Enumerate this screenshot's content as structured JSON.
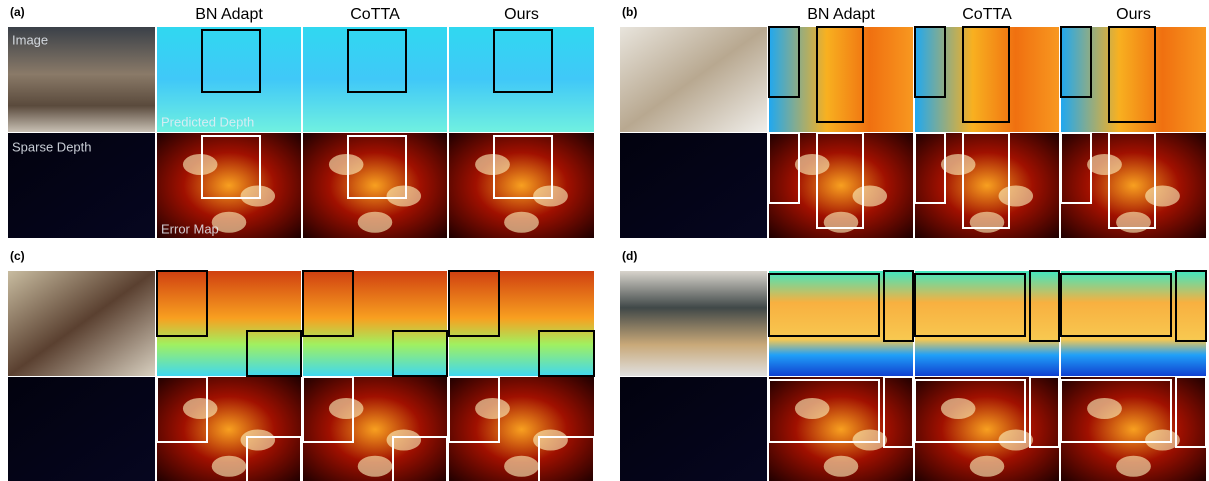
{
  "panels": [
    {
      "label": "(a)",
      "headers": [
        "BN Adapt",
        "CoTTA",
        "Ours"
      ]
    },
    {
      "label": "(b)",
      "headers": [
        "BN Adapt",
        "CoTTA",
        "Ours"
      ]
    },
    {
      "label": "(c)"
    },
    {
      "label": "(d)"
    }
  ],
  "row_labels": {
    "image": "Image",
    "predicted": "Predicted Depth",
    "sparse": "Sparse Depth",
    "error": "Error Map"
  }
}
